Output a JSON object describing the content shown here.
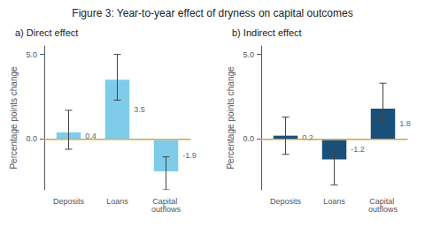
{
  "title": "Figure 3: Year-to-year effect of dryness on capital outcomes",
  "chart_data": [
    {
      "type": "bar",
      "title": "a) Direct effect",
      "categories": [
        "Deposits",
        "Loans",
        "Capital outflows"
      ],
      "values": [
        0.4,
        3.5,
        -1.9
      ],
      "errors_up": [
        1.3,
        1.5,
        0.85
      ],
      "errors_down": [
        1.0,
        1.2,
        1.1
      ],
      "color": "#7eccea",
      "data_labels": true,
      "ylabel": "Percentage points change",
      "ylim": [
        -3.0,
        5.5
      ],
      "yticks": [
        {
          "value": 0.0,
          "label": "0.0"
        },
        {
          "value": 5.0,
          "label": "5.0"
        }
      ],
      "grid": false,
      "reference_line": {
        "y": 0.0,
        "color": "#e8c06a"
      }
    },
    {
      "type": "bar",
      "title": "b) Indirect effect",
      "categories": [
        "Deposits",
        "Loans",
        "Capital outflows"
      ],
      "values": [
        0.2,
        -1.2,
        1.8
      ],
      "errors_up": [
        1.1,
        0.5,
        1.5
      ],
      "errors_down": [
        1.1,
        1.5,
        0.7
      ],
      "color": "#1a4f7a",
      "data_labels": true,
      "ylabel": "Percentage points change",
      "ylim": [
        -3.0,
        5.5
      ],
      "yticks": [
        {
          "value": 0.0,
          "label": "0.0"
        },
        {
          "value": 5.0,
          "label": "5.0"
        }
      ],
      "grid": false,
      "reference_line": {
        "y": 0.0,
        "color": "#e8c06a"
      }
    }
  ]
}
